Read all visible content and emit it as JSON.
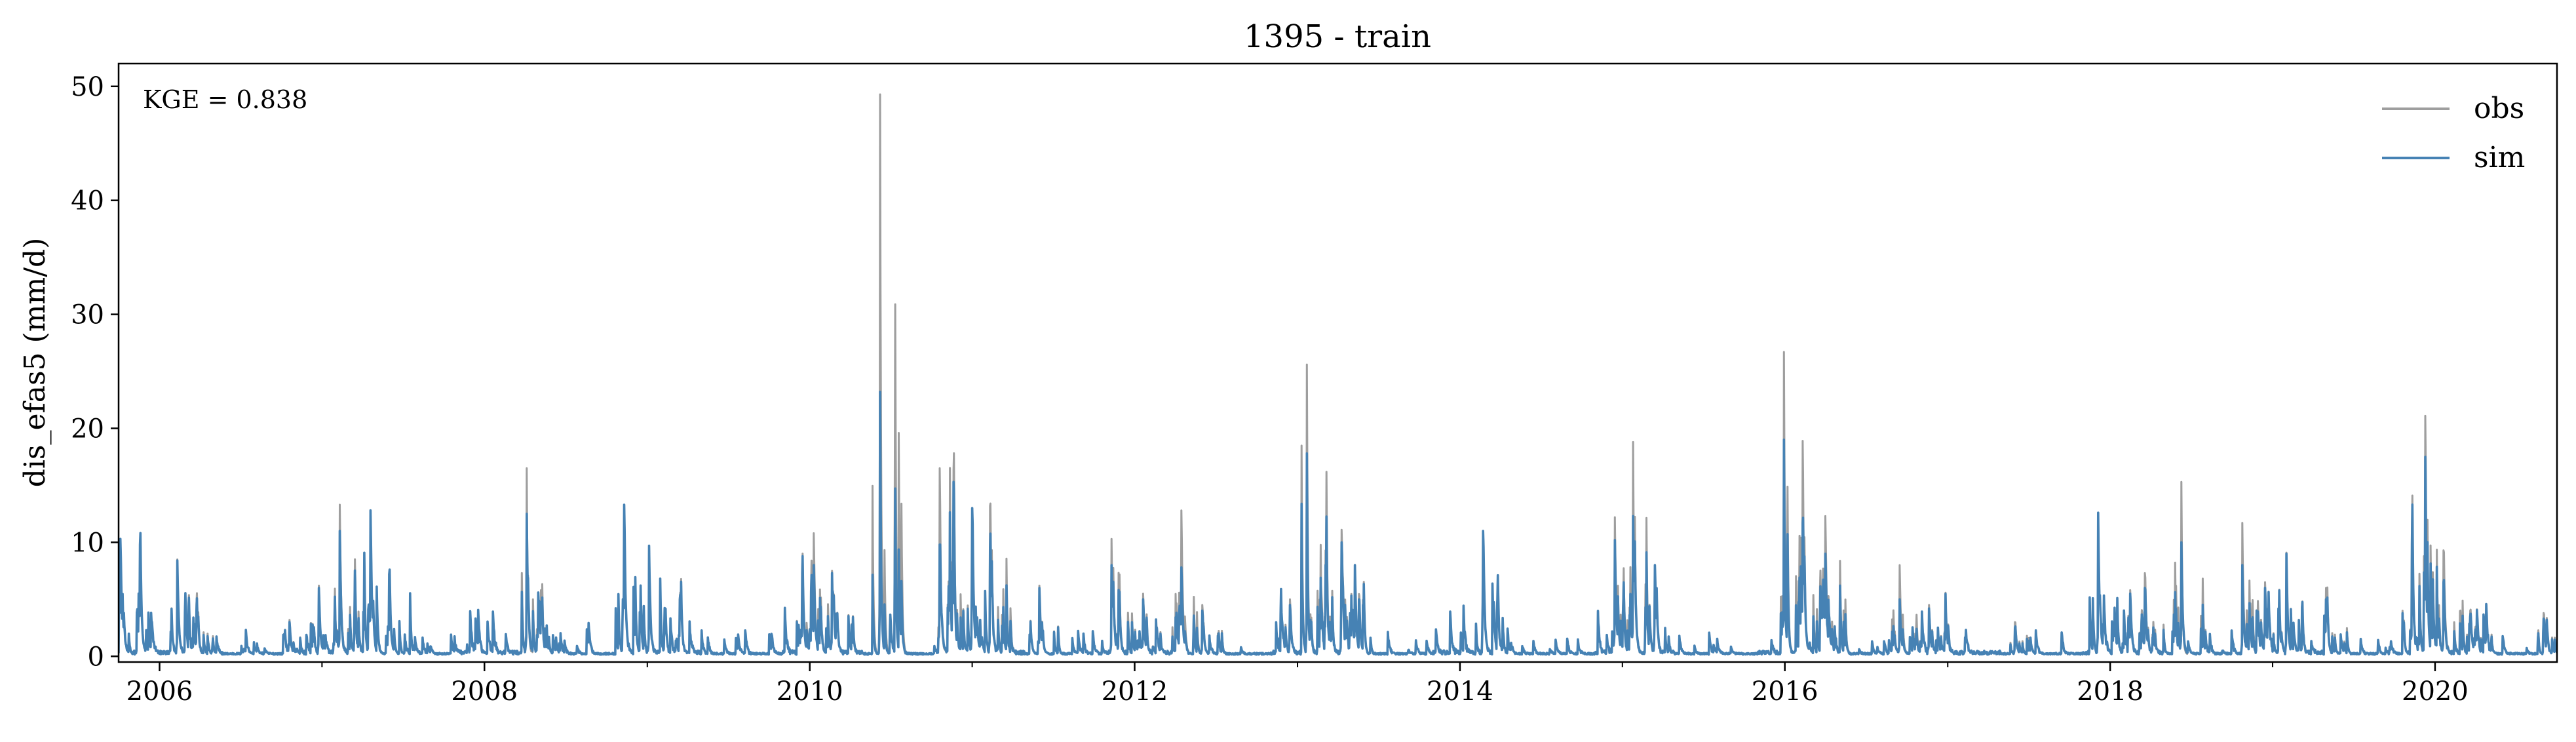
{
  "chart_data": {
    "type": "line",
    "title": "1395 - train",
    "xlabel": "",
    "ylabel": "dis_efas5 (mm/d)",
    "annotation": "KGE = 0.838",
    "x_ticks": [
      "2006",
      "2008",
      "2010",
      "2012",
      "2014",
      "2016",
      "2018",
      "2020"
    ],
    "y_ticks": [
      "0",
      "10",
      "20",
      "30",
      "40",
      "50"
    ],
    "xlim": [
      "2005-10-01",
      "2020-10-01"
    ],
    "ylim": [
      -0.5,
      52
    ],
    "grid": false,
    "legend_position": "top-right",
    "series": [
      {
        "name": "obs",
        "color": "#9e9e9e",
        "peaks": [
          [
            "2005-10-05",
            10.3
          ],
          [
            "2005-11-18",
            9.8
          ],
          [
            "2006-02-10",
            8.5
          ],
          [
            "2006-03-25",
            4.6
          ],
          [
            "2006-10-20",
            3.2
          ],
          [
            "2006-12-25",
            6.2
          ],
          [
            "2007-02-10",
            13.3
          ],
          [
            "2007-04-20",
            12.8
          ],
          [
            "2007-06-01",
            7.2
          ],
          [
            "2008-04-05",
            16.5
          ],
          [
            "2008-05-01",
            5.6
          ],
          [
            "2008-11-10",
            13.3
          ],
          [
            "2009-01-05",
            9.7
          ],
          [
            "2009-03-15",
            5.2
          ],
          [
            "2009-12-15",
            7.5
          ],
          [
            "2010-01-10",
            10.8
          ],
          [
            "2010-02-20",
            7.5
          ],
          [
            "2010-06-08",
            49.3
          ],
          [
            "2010-10-20",
            16.5
          ],
          [
            "2010-11-20",
            16.4
          ],
          [
            "2011-01-01",
            13.0
          ],
          [
            "2011-02-10",
            13.2
          ],
          [
            "2011-06-01",
            6.2
          ],
          [
            "2011-11-10",
            10.3
          ],
          [
            "2012-01-20",
            5.5
          ],
          [
            "2012-04-15",
            12.8
          ],
          [
            "2012-06-01",
            4.5
          ],
          [
            "2012-12-15",
            5.0
          ],
          [
            "2013-01-22",
            25.6
          ],
          [
            "2013-03-05",
            9.3
          ],
          [
            "2013-04-10",
            11.1
          ],
          [
            "2013-05-10",
            8.0
          ],
          [
            "2014-02-22",
            11.0
          ],
          [
            "2014-12-15",
            12.2
          ],
          [
            "2015-01-25",
            18.8
          ],
          [
            "2015-03-15",
            8.0
          ],
          [
            "2015-12-30",
            26.7
          ],
          [
            "2016-02-10",
            18.9
          ],
          [
            "2016-04-01",
            12.3
          ],
          [
            "2016-09-15",
            8.0
          ],
          [
            "2016-11-20",
            4.5
          ],
          [
            "2017-06-01",
            3.0
          ],
          [
            "2017-12-05",
            12.6
          ],
          [
            "2018-02-15",
            5.8
          ],
          [
            "2018-03-20",
            7.3
          ],
          [
            "2018-06-10",
            15.3
          ],
          [
            "2018-10-25",
            11.7
          ],
          [
            "2018-12-15",
            6.5
          ],
          [
            "2019-02-01",
            9.1
          ],
          [
            "2019-05-01",
            6.0
          ],
          [
            "2019-11-10",
            10.4
          ],
          [
            "2019-12-10",
            21.1
          ],
          [
            "2020-01-20",
            9.3
          ],
          [
            "2020-03-20",
            4.0
          ],
          [
            "2020-09-01",
            3.8
          ]
        ]
      },
      {
        "name": "sim",
        "color": "#4682b4",
        "peaks": [
          [
            "2005-10-05",
            10.3
          ],
          [
            "2005-11-18",
            9.8
          ],
          [
            "2006-02-10",
            8.4
          ],
          [
            "2006-03-25",
            4.0
          ],
          [
            "2006-10-20",
            3.0
          ],
          [
            "2006-12-25",
            6.0
          ],
          [
            "2007-02-10",
            11.0
          ],
          [
            "2007-04-20",
            12.8
          ],
          [
            "2007-06-01",
            7.2
          ],
          [
            "2008-04-05",
            12.5
          ],
          [
            "2008-05-01",
            5.6
          ],
          [
            "2008-11-10",
            13.3
          ],
          [
            "2009-01-05",
            9.7
          ],
          [
            "2009-03-15",
            5.0
          ],
          [
            "2009-12-15",
            7.3
          ],
          [
            "2010-01-10",
            8.0
          ],
          [
            "2010-02-20",
            7.3
          ],
          [
            "2010-06-08",
            23.2
          ],
          [
            "2010-10-20",
            9.8
          ],
          [
            "2010-11-20",
            15.3
          ],
          [
            "2011-01-01",
            13.0
          ],
          [
            "2011-02-10",
            9.5
          ],
          [
            "2011-06-01",
            6.0
          ],
          [
            "2011-11-10",
            8.0
          ],
          [
            "2012-01-20",
            5.0
          ],
          [
            "2012-04-15",
            7.8
          ],
          [
            "2012-06-01",
            4.0
          ],
          [
            "2012-12-15",
            4.5
          ],
          [
            "2013-01-22",
            17.8
          ],
          [
            "2013-03-05",
            8.0
          ],
          [
            "2013-04-10",
            10.0
          ],
          [
            "2013-05-10",
            8.0
          ],
          [
            "2014-02-22",
            11.0
          ],
          [
            "2014-12-15",
            10.2
          ],
          [
            "2015-01-25",
            12.3
          ],
          [
            "2015-03-15",
            8.0
          ],
          [
            "2015-12-30",
            19.0
          ],
          [
            "2016-02-10",
            11.7
          ],
          [
            "2016-04-01",
            9.0
          ],
          [
            "2016-09-15",
            5.0
          ],
          [
            "2016-11-20",
            4.2
          ],
          [
            "2017-06-01",
            2.5
          ],
          [
            "2017-12-05",
            12.6
          ],
          [
            "2018-02-15",
            5.5
          ],
          [
            "2018-03-20",
            6.0
          ],
          [
            "2018-06-10",
            10.0
          ],
          [
            "2018-10-25",
            8.0
          ],
          [
            "2018-12-15",
            6.0
          ],
          [
            "2019-02-01",
            9.0
          ],
          [
            "2019-05-01",
            5.0
          ],
          [
            "2019-11-10",
            9.8
          ],
          [
            "2019-12-10",
            17.5
          ],
          [
            "2020-01-20",
            6.5
          ],
          [
            "2020-03-20",
            3.5
          ],
          [
            "2020-09-01",
            3.3
          ]
        ]
      }
    ]
  }
}
